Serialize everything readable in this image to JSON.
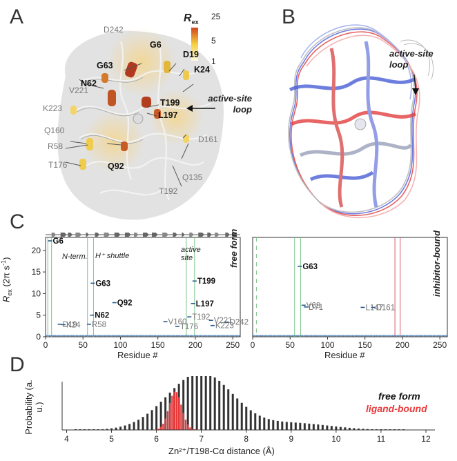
{
  "panels": {
    "a": "A",
    "b": "B",
    "c": "C",
    "d": "D"
  },
  "panel_a": {
    "colorbar": {
      "label": "R",
      "label_sub": "ex",
      "ticks": [
        "25",
        "5",
        "1"
      ],
      "colors": [
        "#d2451e",
        "#f4d03f",
        "#fffbe0"
      ]
    },
    "dark_labels": [
      "G6",
      "D19",
      "G63",
      "K24",
      "N62",
      "T199",
      "L197",
      "Q92"
    ],
    "grey_labels": [
      "D242",
      "V221",
      "K223",
      "Q160",
      "R58",
      "T176",
      "D161",
      "Q135",
      "T192"
    ],
    "annotation": "active-site loop"
  },
  "panel_b": {
    "annotation": "active-site loop"
  },
  "chart_data": [
    {
      "type": "scatter",
      "panel": "C-left",
      "ylabel": "Rex (2π s⁻¹)",
      "xlabel": "Residue #",
      "xlim": [
        0,
        260
      ],
      "ylim": [
        0,
        23
      ],
      "xticks": [
        "0",
        "50",
        "100",
        "150",
        "200",
        "250"
      ],
      "yticks": [
        "0",
        "5",
        "10",
        "15",
        "20"
      ],
      "corner_label": "free form",
      "region_labels": [
        "N-term.",
        "H⁺ shuttle",
        "active site"
      ],
      "points": [
        {
          "x": 6,
          "y": 22.2,
          "label": "G6"
        },
        {
          "x": 19,
          "y": 2.9,
          "label": "D19"
        },
        {
          "x": 24,
          "y": 2.8,
          "label": "K24"
        },
        {
          "x": 58,
          "y": 2.9,
          "label": "R58"
        },
        {
          "x": 62,
          "y": 5.0,
          "label": "N62"
        },
        {
          "x": 63,
          "y": 12.4,
          "label": "G63"
        },
        {
          "x": 92,
          "y": 7.9,
          "label": "Q92"
        },
        {
          "x": 160,
          "y": 3.5,
          "label": "V160"
        },
        {
          "x": 176,
          "y": 2.4,
          "label": "T176"
        },
        {
          "x": 192,
          "y": 4.6,
          "label": "T192"
        },
        {
          "x": 197,
          "y": 7.7,
          "label": "L197"
        },
        {
          "x": 199,
          "y": 12.9,
          "label": "T199"
        },
        {
          "x": 221,
          "y": 3.8,
          "label": "V221"
        },
        {
          "x": 223,
          "y": 2.6,
          "label": "K223"
        },
        {
          "x": 242,
          "y": 3.4,
          "label": "D242"
        }
      ]
    },
    {
      "type": "scatter",
      "panel": "C-right",
      "xlabel": "Residue #",
      "xlim": [
        0,
        260
      ],
      "ylim": [
        0,
        23
      ],
      "xticks": [
        "0",
        "50",
        "100",
        "150",
        "200",
        "250"
      ],
      "corner_label": "inhibitor-bound",
      "points": [
        {
          "x": 63,
          "y": 16.3,
          "label": "G63"
        },
        {
          "x": 68,
          "y": 7.3,
          "label": "V68"
        },
        {
          "x": 71,
          "y": 6.9,
          "label": "D71"
        },
        {
          "x": 147,
          "y": 6.8,
          "label": "L147"
        },
        {
          "x": 161,
          "y": 6.8,
          "label": "D161"
        }
      ]
    },
    {
      "type": "bar",
      "panel": "D",
      "ylabel": "Probability (a. u.)",
      "xlabel": "Zn²⁺/T198-Cα distance (Å)",
      "xlim": [
        3.9,
        12.2
      ],
      "xticks": [
        "4",
        "5",
        "6",
        "7",
        "8",
        "9",
        "10",
        "11",
        "12"
      ],
      "series": [
        {
          "name": "free form",
          "color": "#333333"
        },
        {
          "name": "ligand-bound",
          "color": "#e8393a"
        }
      ]
    }
  ]
}
